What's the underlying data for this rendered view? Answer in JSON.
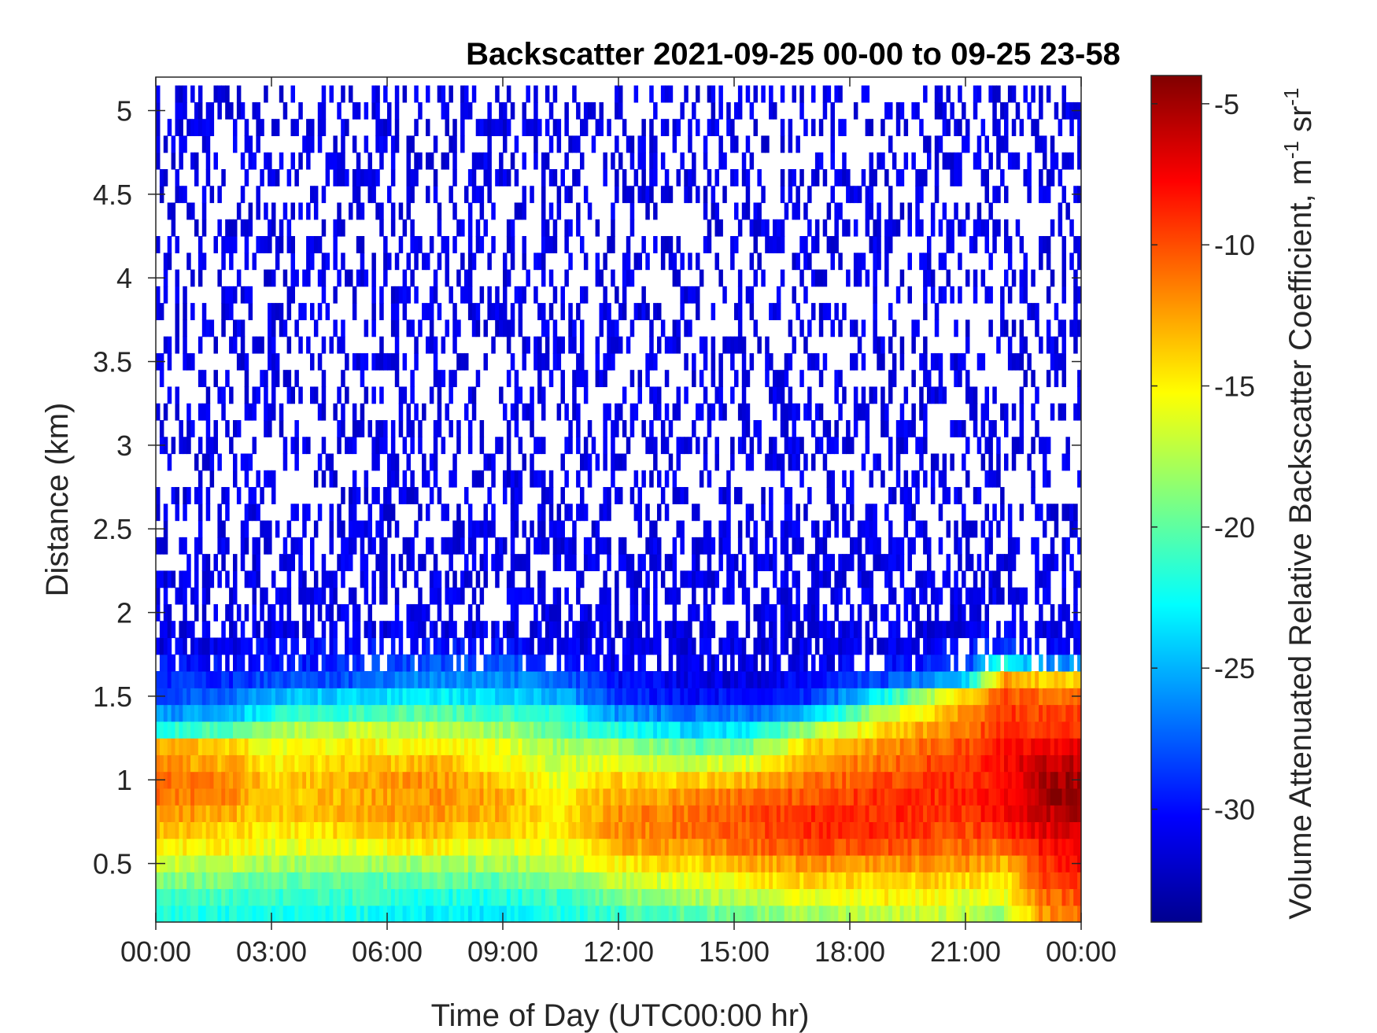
{
  "chart_data": {
    "type": "heatmap",
    "title": "Backscatter 2021-09-25 00-00 to 09-25 23-58",
    "xlabel": "Time of Day (UTC00:00 hr)",
    "ylabel": "Distance (km)",
    "colorbar_label": "Volume Attenuated Relative Backscatter Coefficient, m",
    "colorbar_label_unit_1": "-1",
    "colorbar_label_unit_2": " sr",
    "colorbar_label_unit_3": "-1",
    "colormap": "jet",
    "xlim_hours": [
      0,
      24
    ],
    "ylim_km": [
      0.15,
      5.2
    ],
    "clim": [
      -34,
      -4
    ],
    "x_ticks": [
      {
        "hours": 0,
        "label": "00:00"
      },
      {
        "hours": 3,
        "label": "03:00"
      },
      {
        "hours": 6,
        "label": "06:00"
      },
      {
        "hours": 9,
        "label": "09:00"
      },
      {
        "hours": 12,
        "label": "12:00"
      },
      {
        "hours": 15,
        "label": "15:00"
      },
      {
        "hours": 18,
        "label": "18:00"
      },
      {
        "hours": 21,
        "label": "21:00"
      },
      {
        "hours": 24,
        "label": "00:00"
      }
    ],
    "y_ticks": [
      {
        "value": 0.5,
        "label": "0.5"
      },
      {
        "value": 1,
        "label": "1"
      },
      {
        "value": 1.5,
        "label": "1.5"
      },
      {
        "value": 2,
        "label": "2"
      },
      {
        "value": 2.5,
        "label": "2.5"
      },
      {
        "value": 3,
        "label": "3"
      },
      {
        "value": 3.5,
        "label": "3.5"
      },
      {
        "value": 4,
        "label": "4"
      },
      {
        "value": 4.5,
        "label": "4.5"
      },
      {
        "value": 5,
        "label": "5"
      }
    ],
    "colorbar_ticks": [
      {
        "value": -5,
        "label": "-5"
      },
      {
        "value": -10,
        "label": "-10"
      },
      {
        "value": -15,
        "label": "-15"
      },
      {
        "value": -20,
        "label": "-20"
      },
      {
        "value": -25,
        "label": "-25"
      },
      {
        "value": -30,
        "label": "-30"
      }
    ],
    "distance_bins_km": [
      0.2,
      0.3,
      0.4,
      0.5,
      0.6,
      0.7,
      0.8,
      0.9,
      1.0,
      1.1,
      1.2,
      1.3,
      1.4,
      1.5,
      1.6,
      1.7,
      1.8,
      1.9,
      2.0,
      2.1,
      2.2,
      2.3,
      2.4,
      2.5,
      2.6,
      2.7,
      2.8,
      2.9,
      3.0,
      3.1,
      3.2,
      3.3,
      3.4,
      3.5,
      3.6,
      3.7,
      3.8,
      3.9,
      4.0,
      4.1,
      4.2,
      4.3,
      4.4,
      4.5,
      4.6,
      4.7,
      4.8,
      4.9,
      5.0,
      5.1
    ],
    "profiles": [
      {
        "hour": 0,
        "values": [
          -22,
          -21,
          -19,
          -17,
          -15,
          -13,
          -12,
          -11,
          -11,
          -12,
          -13,
          -22,
          -26,
          -28,
          -29,
          -30,
          -31,
          -31
        ]
      },
      {
        "hour": 2,
        "values": [
          -22,
          -21,
          -19,
          -17,
          -15,
          -14,
          -13,
          -12,
          -12,
          -13,
          -14,
          -20,
          -25,
          -27,
          -29,
          -30,
          -31,
          -31
        ]
      },
      {
        "hour": 3,
        "values": [
          -22,
          -21,
          -20,
          -18,
          -16,
          -15,
          -14,
          -14,
          -14,
          -15,
          -16,
          -18,
          -22,
          -25,
          -28,
          -30,
          -30,
          -31
        ]
      },
      {
        "hour": 5,
        "values": [
          -22,
          -21,
          -20,
          -18,
          -16,
          -14,
          -13,
          -13,
          -13,
          -14,
          -15,
          -17,
          -21,
          -24,
          -28,
          -29,
          -30,
          -31
        ]
      },
      {
        "hour": 7,
        "values": [
          -23,
          -22,
          -20,
          -18,
          -15,
          -13,
          -12,
          -12,
          -12,
          -13,
          -15,
          -17,
          -20,
          -23,
          -26,
          -28,
          -30,
          -31
        ]
      },
      {
        "hour": 9,
        "values": [
          -23,
          -22,
          -20,
          -18,
          -16,
          -14,
          -13,
          -13,
          -14,
          -15,
          -16,
          -18,
          -21,
          -24,
          -26,
          -28,
          -30,
          -31
        ]
      },
      {
        "hour": 10.5,
        "values": [
          -22,
          -21,
          -19,
          -17,
          -16,
          -15,
          -15,
          -15,
          -16,
          -17,
          -18,
          -20,
          -22,
          -25,
          -27,
          -29,
          -31,
          -31
        ]
      },
      {
        "hour": 12,
        "values": [
          -21,
          -19,
          -17,
          -15,
          -13,
          -12,
          -12,
          -13,
          -14,
          -16,
          -18,
          -22,
          -26,
          -29,
          -30,
          -31,
          -31,
          -31
        ]
      },
      {
        "hour": 14,
        "values": [
          -20,
          -18,
          -16,
          -14,
          -12,
          -11,
          -11,
          -12,
          -14,
          -17,
          -20,
          -24,
          -27,
          -30,
          -31,
          -31,
          -31,
          -31
        ]
      },
      {
        "hour": 15.5,
        "values": [
          -19,
          -17,
          -15,
          -13,
          -11,
          -10,
          -10,
          -11,
          -13,
          -16,
          -19,
          -23,
          -27,
          -30,
          -31,
          -31,
          -31,
          -31
        ]
      },
      {
        "hour": 17,
        "values": [
          -18,
          -16,
          -14,
          -12,
          -10,
          -9,
          -9,
          -10,
          -11,
          -12,
          -14,
          -18,
          -24,
          -29,
          -30,
          -31,
          -31,
          -31
        ]
      },
      {
        "hour": 19,
        "values": [
          -17,
          -15,
          -14,
          -12,
          -10,
          -9,
          -9,
          -9,
          -10,
          -11,
          -12,
          -14,
          -17,
          -22,
          -28,
          -30,
          -31,
          -31
        ]
      },
      {
        "hour": 21,
        "values": [
          -17,
          -16,
          -14,
          -12,
          -11,
          -10,
          -9,
          -9,
          -9,
          -9,
          -10,
          -11,
          -12,
          -14,
          -24,
          -29,
          -30,
          -31
        ]
      },
      {
        "hour": 22,
        "values": [
          -18,
          -16,
          -15,
          -13,
          -11,
          -9,
          -8,
          -8,
          -8,
          -8,
          -8,
          -9,
          -9,
          -10,
          -12,
          -22,
          -29,
          -30
        ]
      },
      {
        "hour": 23,
        "values": [
          -12,
          -11,
          -10,
          -9,
          -8,
          -7,
          -6,
          -5,
          -5,
          -6,
          -8,
          -9,
          -10,
          -11,
          -14,
          -26,
          -30,
          -31
        ]
      },
      {
        "hour": 24,
        "values": [
          -11,
          -10,
          -9,
          -8,
          -7,
          -6,
          -5,
          -4,
          -5,
          -6,
          -7,
          -9,
          -10,
          -11,
          -14,
          -26,
          -30,
          -31
        ]
      }
    ],
    "noise_region": {
      "from_km": 1.95,
      "to_km": 5.15,
      "level": -31,
      "coverage_fraction": 0.35
    }
  }
}
